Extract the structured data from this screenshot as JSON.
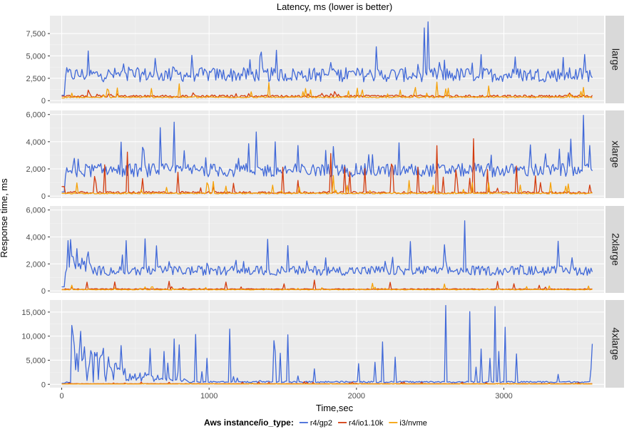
{
  "chart_data": {
    "type": "line",
    "title": "Latency, ms (lower is better)",
    "xlabel": "Time,sec",
    "ylabel": "Response time, ms",
    "xlim": [
      -80,
      3680
    ],
    "x_ticks": [
      0,
      1000,
      2000,
      3000
    ],
    "x_tick_labels": [
      "0",
      "1000",
      "2000",
      "3000"
    ],
    "x_range_of_data": [
      0,
      3600
    ],
    "legend": {
      "title": "Aws instance/io_type:",
      "position": "bottom",
      "entries": [
        {
          "label": "r4/gp2",
          "color": "#4169d8"
        },
        {
          "label": "r4/io1.10k",
          "color": "#d33c0f"
        },
        {
          "label": "i3/nvme",
          "color": "#f5a20a"
        }
      ]
    },
    "facets": [
      {
        "label": "large",
        "ylim": [
          -300,
          9500
        ],
        "y_ticks": [
          0,
          2500,
          5000,
          7500
        ],
        "y_tick_labels": [
          "0",
          "2,500",
          "5,000",
          "7,500"
        ],
        "series": [
          {
            "name": "r4/gp2",
            "mean": 2900,
            "spread": 800,
            "spike_max": 9300,
            "start": 600
          },
          {
            "name": "r4/io1.10k",
            "mean": 500,
            "spread": 130,
            "spike_max": 1200,
            "start": 500
          },
          {
            "name": "i3/nvme",
            "mean": 380,
            "spread": 60,
            "spike_max": 2700,
            "start": 300
          }
        ]
      },
      {
        "label": "xlarge",
        "ylim": [
          -150,
          6300
        ],
        "y_ticks": [
          0,
          2000,
          4000,
          6000
        ],
        "y_tick_labels": [
          "0",
          "2,000",
          "4,000",
          "6,000"
        ],
        "series": [
          {
            "name": "r4/gp2",
            "mean": 1900,
            "spread": 500,
            "spike_max": 6000,
            "start": 300
          },
          {
            "name": "r4/io1.10k",
            "mean": 260,
            "spread": 80,
            "spike_max": 4400,
            "start": 700
          },
          {
            "name": "i3/nvme",
            "mean": 200,
            "spread": 40,
            "spike_max": 1700,
            "start": 200
          }
        ]
      },
      {
        "label": "2xlarge",
        "ylim": [
          -150,
          6300
        ],
        "y_ticks": [
          0,
          2000,
          4000,
          6000
        ],
        "y_tick_labels": [
          "0",
          "2,000",
          "4,000",
          "6,000"
        ],
        "series": [
          {
            "name": "r4/gp2",
            "mean": 1500,
            "spread": 350,
            "spike_max": 5800,
            "start": 300
          },
          {
            "name": "r4/io1.10k",
            "mean": 130,
            "spread": 30,
            "spike_max": 1200,
            "start": 100
          },
          {
            "name": "i3/nvme",
            "mean": 90,
            "spread": 20,
            "spike_max": 600,
            "start": 80
          }
        ]
      },
      {
        "label": "4xlarge",
        "ylim": [
          -700,
          17500
        ],
        "y_ticks": [
          0,
          5000,
          10000,
          15000
        ],
        "y_tick_labels": [
          "0",
          "5,000",
          "10,000",
          "15,000"
        ],
        "series": [
          {
            "name": "r4/gp2",
            "mean": 500,
            "spread": 150,
            "spike_max": 16500,
            "start": 200
          },
          {
            "name": "r4/io1.10k",
            "mean": 120,
            "spread": 20,
            "spike_max": 800,
            "start": 100
          },
          {
            "name": "i3/nvme",
            "mean": 60,
            "spread": 10,
            "spike_max": 300,
            "start": 50
          }
        ]
      }
    ]
  }
}
